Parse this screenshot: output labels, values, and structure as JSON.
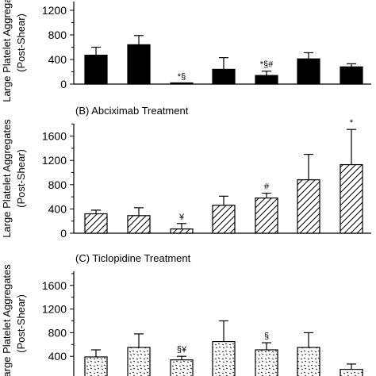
{
  "chart_data": [
    {
      "type": "bar",
      "panel": "A",
      "title": "",
      "ylabel_lines": [
        "Large Platelet Aggregates",
        "(Post-Shear)"
      ],
      "xlabel": "",
      "ylim": [
        0,
        1200
      ],
      "yticks": [
        "0",
        "400",
        "800",
        "1200"
      ],
      "fill": "solid",
      "values": [
        470,
        640,
        10,
        240,
        140,
        410,
        280
      ],
      "errors": [
        130,
        150,
        0,
        190,
        70,
        100,
        50
      ],
      "annotations": [
        "",
        "",
        "*§",
        "",
        "*§#",
        "",
        ""
      ]
    },
    {
      "type": "bar",
      "panel": "B",
      "title": "(B) Abciximab Treatment",
      "ylabel_lines": [
        "Large Platelet Aggregates",
        "(Post-Shear)"
      ],
      "xlabel": "",
      "ylim": [
        0,
        1700
      ],
      "yticks": [
        "0",
        "400",
        "800",
        "1200",
        "1600"
      ],
      "fill": "hatch",
      "values": [
        320,
        290,
        70,
        460,
        580,
        880,
        1130
      ],
      "errors": [
        60,
        130,
        90,
        150,
        80,
        420,
        580
      ],
      "annotations": [
        "",
        "",
        "¥",
        "",
        "#",
        "",
        "*"
      ]
    },
    {
      "type": "bar",
      "panel": "C",
      "title": "(C) Ticlopidine Treatment",
      "ylabel_lines": [
        "Large Platelet Aggregates",
        "(Post-Shear)"
      ],
      "xlabel": "",
      "ylim": [
        0,
        1700
      ],
      "yticks": [
        "400",
        "800",
        "1200",
        "1600"
      ],
      "fill": "dots",
      "values": [
        390,
        550,
        340,
        650,
        510,
        550,
        180
      ],
      "errors": [
        120,
        230,
        60,
        350,
        120,
        250,
        90
      ],
      "annotations": [
        "",
        "",
        "§¥",
        "",
        "§",
        "",
        ""
      ]
    }
  ]
}
